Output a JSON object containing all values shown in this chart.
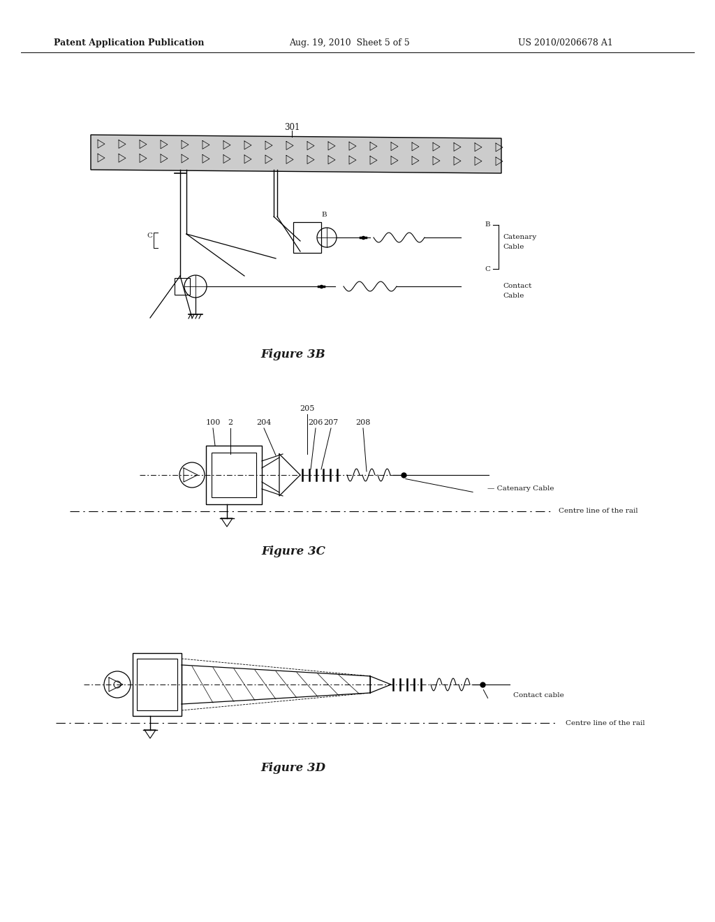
{
  "background_color": "#ffffff",
  "header_left": "Patent Application Publication",
  "header_center": "Aug. 19, 2010  Sheet 5 of 5",
  "header_right": "US 2010/0206678 A1",
  "fig3b_label": "Figure 3B",
  "fig3c_label": "Figure 3C",
  "fig3d_label": "Figure 3D",
  "text_color": "#1a1a1a"
}
